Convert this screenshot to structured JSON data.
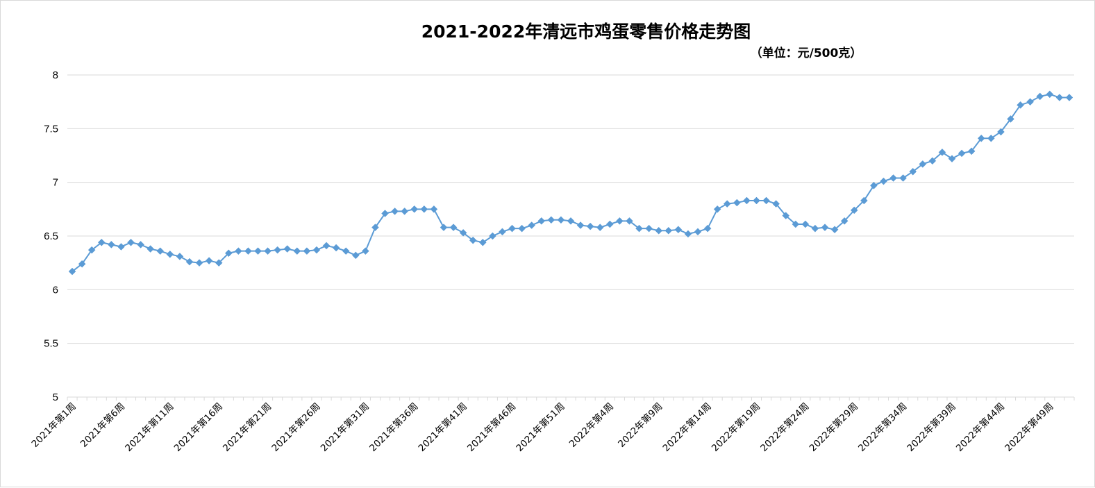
{
  "chart_data": {
    "type": "line",
    "title": "2021-2022年清远市鸡蛋零售价格走势图",
    "subtitle": "（单位：元/500克）",
    "xlabel": "",
    "ylabel": "",
    "ylim": [
      5,
      8
    ],
    "yticks": [
      "5",
      "5.5",
      "6",
      "6.5",
      "7",
      "7.5",
      "8"
    ],
    "grid": true,
    "legend": "none",
    "colors": {
      "line": "#5b9bd5",
      "marker": "#5b9bd5",
      "grid": "#d9d9d9",
      "axis": "#d9d9d9"
    },
    "x": [
      "2021年第1周",
      "2021年第2周",
      "2021年第3周",
      "2021年第4周",
      "2021年第5周",
      "2021年第6周",
      "2021年第7周",
      "2021年第8周",
      "2021年第9周",
      "2021年第10周",
      "2021年第11周",
      "2021年第12周",
      "2021年第13周",
      "2021年第14周",
      "2021年第15周",
      "2021年第16周",
      "2021年第17周",
      "2021年第18周",
      "2021年第19周",
      "2021年第20周",
      "2021年第21周",
      "2021年第22周",
      "2021年第23周",
      "2021年第24周",
      "2021年第25周",
      "2021年第26周",
      "2021年第27周",
      "2021年第28周",
      "2021年第29周",
      "2021年第30周",
      "2021年第31周",
      "2021年第32周",
      "2021年第33周",
      "2021年第34周",
      "2021年第35周",
      "2021年第36周",
      "2021年第37周",
      "2021年第38周",
      "2021年第39周",
      "2021年第40周",
      "2021年第41周",
      "2021年第42周",
      "2021年第43周",
      "2021年第44周",
      "2021年第45周",
      "2021年第46周",
      "2021年第47周",
      "2021年第48周",
      "2021年第49周",
      "2021年第50周",
      "2021年第51周",
      "2021年第52周",
      "2022年第1周",
      "2022年第2周",
      "2022年第3周",
      "2022年第4周",
      "2022年第5周",
      "2022年第6周",
      "2022年第7周",
      "2022年第8周",
      "2022年第9周",
      "2022年第10周",
      "2022年第11周",
      "2022年第12周",
      "2022年第13周",
      "2022年第14周",
      "2022年第15周",
      "2022年第16周",
      "2022年第17周",
      "2022年第18周",
      "2022年第19周",
      "2022年第20周",
      "2022年第21周",
      "2022年第22周",
      "2022年第23周",
      "2022年第24周",
      "2022年第25周",
      "2022年第26周",
      "2022年第27周",
      "2022年第28周",
      "2022年第29周",
      "2022年第30周",
      "2022年第31周",
      "2022年第32周",
      "2022年第33周",
      "2022年第34周",
      "2022年第35周",
      "2022年第36周",
      "2022年第37周",
      "2022年第38周",
      "2022年第39周",
      "2022年第40周",
      "2022年第41周",
      "2022年第42周",
      "2022年第43周",
      "2022年第44周",
      "2022年第45周",
      "2022年第46周",
      "2022年第47周",
      "2022年第48周",
      "2022年第49周",
      "2022年第50周",
      "2022年第51周"
    ],
    "xtick_labels": [
      "2021年第1周",
      "2021年第6周",
      "2021年第11周",
      "2021年第16周",
      "2021年第21周",
      "2021年第26周",
      "2021年第31周",
      "2021年第36周",
      "2021年第41周",
      "2021年第46周",
      "2021年第51周",
      "2022年第4周",
      "2022年第9周",
      "2022年第14周",
      "2022年第19周",
      "2022年第24周",
      "2022年第29周",
      "2022年第34周",
      "2022年第39周",
      "2022年第44周",
      "2022年第49周"
    ],
    "series": [
      {
        "values": [
          6.17,
          6.24,
          6.37,
          6.44,
          6.42,
          6.4,
          6.44,
          6.42,
          6.38,
          6.36,
          6.33,
          6.31,
          6.26,
          6.25,
          6.27,
          6.25,
          6.34,
          6.36,
          6.36,
          6.36,
          6.36,
          6.37,
          6.38,
          6.36,
          6.36,
          6.37,
          6.41,
          6.39,
          6.36,
          6.32,
          6.36,
          6.58,
          6.71,
          6.73,
          6.73,
          6.75,
          6.75,
          6.75,
          6.58,
          6.58,
          6.53,
          6.46,
          6.44,
          6.5,
          6.54,
          6.57,
          6.57,
          6.6,
          6.64,
          6.65,
          6.65,
          6.64,
          6.6,
          6.59,
          6.58,
          6.61,
          6.64,
          6.64,
          6.57,
          6.57,
          6.55,
          6.55,
          6.56,
          6.52,
          6.54,
          6.57,
          6.75,
          6.8,
          6.81,
          6.83,
          6.83,
          6.83,
          6.8,
          6.69,
          6.61,
          6.61,
          6.57,
          6.58,
          6.56,
          6.64,
          6.74,
          6.83,
          6.97,
          7.01,
          7.04,
          7.04,
          7.1,
          7.17,
          7.2,
          7.28,
          7.22,
          7.27,
          7.29,
          7.41,
          7.41,
          7.47,
          7.59,
          7.72,
          7.75,
          7.8,
          7.82,
          7.79,
          7.79
        ]
      }
    ]
  }
}
